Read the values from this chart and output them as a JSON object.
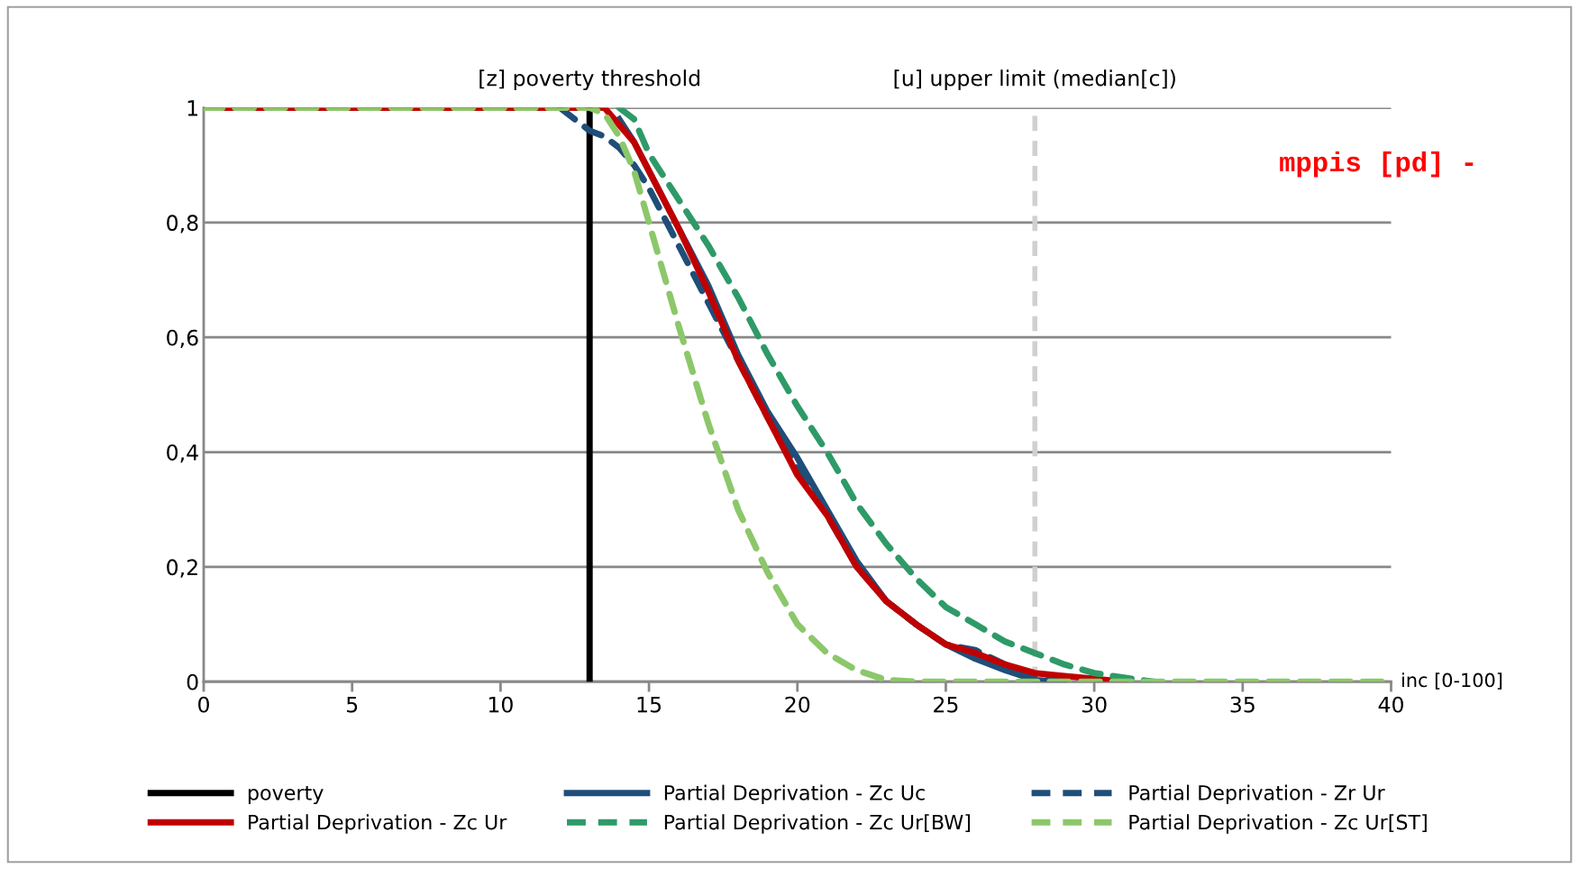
{
  "chart_data": {
    "type": "line",
    "xlabel": "inc [0-100]",
    "x": [
      0,
      12,
      13,
      13.5,
      14,
      14.5,
      15,
      16,
      17,
      18,
      19,
      20,
      21,
      22,
      23,
      24,
      25,
      26,
      27,
      28,
      29,
      30,
      31,
      32,
      35,
      40
    ],
    "series": [
      {
        "name": "poverty",
        "color": "#000000",
        "line_style": "solid",
        "x": [
          13,
          13
        ],
        "values": [
          0,
          1
        ]
      },
      {
        "name": "Partial Deprivation - Zc Uc",
        "color": "#1f4e79",
        "line_style": "solid",
        "x": [
          14,
          14.5,
          15,
          16,
          17,
          18,
          19,
          20,
          21,
          22,
          23,
          24,
          25,
          26,
          27,
          28,
          29
        ],
        "values": [
          0.98,
          0.94,
          0.89,
          0.79,
          0.69,
          0.57,
          0.47,
          0.39,
          0.3,
          0.21,
          0.14,
          0.1,
          0.065,
          0.04,
          0.02,
          0.003,
          0
        ]
      },
      {
        "name": "Partial Deprivation - Zr Ur",
        "color": "#1f4e79",
        "line_style": "dashed",
        "x": [
          12,
          12.5,
          13,
          13.5,
          14,
          14.5,
          15,
          16,
          17,
          18,
          19,
          20,
          21,
          22,
          23,
          24,
          25,
          26,
          27,
          28,
          29
        ],
        "values": [
          1,
          0.98,
          0.96,
          0.95,
          0.93,
          0.9,
          0.86,
          0.76,
          0.66,
          0.56,
          0.46,
          0.37,
          0.29,
          0.2,
          0.14,
          0.1,
          0.065,
          0.055,
          0.03,
          0.005,
          0
        ]
      },
      {
        "name": "Partial Deprivation - Zc Ur",
        "color": "#c00000",
        "line_style": "solid",
        "x": [
          0,
          13,
          13.5,
          14,
          14.5,
          15,
          16,
          17,
          18,
          19,
          20,
          21,
          22,
          23,
          24,
          25,
          26,
          27,
          28,
          29,
          30,
          31
        ],
        "values": [
          1,
          1,
          1,
          0.97,
          0.94,
          0.89,
          0.79,
          0.68,
          0.56,
          0.46,
          0.36,
          0.29,
          0.2,
          0.14,
          0.1,
          0.065,
          0.05,
          0.03,
          0.015,
          0.01,
          0.005,
          0
        ]
      },
      {
        "name": "Partial Deprivation - Zc Ur[BW]",
        "color": "#2e9a68",
        "line_style": "dashed",
        "x": [
          14,
          14.5,
          15,
          16,
          17,
          18,
          19,
          20,
          21,
          22,
          23,
          24,
          25,
          26,
          27,
          28,
          29,
          30,
          31,
          32
        ],
        "values": [
          1,
          0.98,
          0.92,
          0.84,
          0.76,
          0.67,
          0.57,
          0.48,
          0.4,
          0.31,
          0.24,
          0.18,
          0.13,
          0.1,
          0.07,
          0.05,
          0.03,
          0.015,
          0.007,
          0
        ]
      },
      {
        "name": "Partial Deprivation - Zc Ur[ST]",
        "color": "#8cc76a",
        "line_style": "dashed",
        "values": [
          1,
          1,
          1,
          0.99,
          0.95,
          0.89,
          0.8,
          0.62,
          0.45,
          0.3,
          0.19,
          0.1,
          0.05,
          0.02,
          0.003,
          0,
          0,
          0,
          0,
          0,
          0,
          0,
          0,
          0,
          0,
          0
        ]
      }
    ],
    "xlim": [
      0,
      40
    ],
    "xticks": [
      0,
      5,
      10,
      15,
      20,
      25,
      30,
      35,
      40
    ],
    "ylim": [
      0,
      1
    ],
    "yticks": [
      0,
      {
        "value": 0.2,
        "label": "0,2"
      },
      {
        "value": 0.4,
        "label": "0,4"
      },
      {
        "value": 0.6,
        "label": "0,6"
      },
      {
        "value": 0.8,
        "label": "0,8"
      },
      1
    ],
    "grid": "y",
    "legend": "bottom",
    "marker": "none",
    "ref_lines": [
      {
        "axis": "x",
        "value": 28,
        "label": "[u] upper limit (median[c])",
        "color": "#d0d0d0",
        "line_style": "dashed"
      }
    ],
    "annotations": [
      {
        "text": "[z] poverty threshold",
        "x": 13,
        "y": 1
      },
      "mppis [pd] -"
    ]
  }
}
